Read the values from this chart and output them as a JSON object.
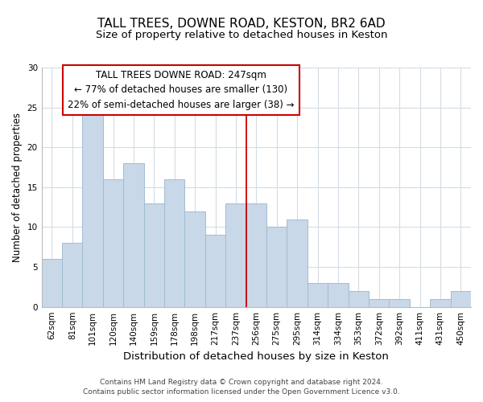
{
  "title": "TALL TREES, DOWNE ROAD, KESTON, BR2 6AD",
  "subtitle": "Size of property relative to detached houses in Keston",
  "xlabel": "Distribution of detached houses by size in Keston",
  "ylabel": "Number of detached properties",
  "categories": [
    "62sqm",
    "81sqm",
    "101sqm",
    "120sqm",
    "140sqm",
    "159sqm",
    "178sqm",
    "198sqm",
    "217sqm",
    "237sqm",
    "256sqm",
    "275sqm",
    "295sqm",
    "314sqm",
    "334sqm",
    "353sqm",
    "372sqm",
    "392sqm",
    "411sqm",
    "431sqm",
    "450sqm"
  ],
  "values": [
    6,
    8,
    25,
    16,
    18,
    13,
    16,
    12,
    9,
    13,
    13,
    10,
    11,
    3,
    3,
    2,
    1,
    1,
    0,
    1,
    2
  ],
  "bar_color": "#c8d8e8",
  "bar_edgecolor": "#a0bcd0",
  "vline_x": 9.5,
  "vline_color": "#cc0000",
  "ylim": [
    0,
    30
  ],
  "yticks": [
    0,
    5,
    10,
    15,
    20,
    25,
    30
  ],
  "annotation_line1": "TALL TREES DOWNE ROAD: 247sqm",
  "annotation_line2": "← 77% of detached houses are smaller (130)",
  "annotation_line3": "22% of semi-detached houses are larger (38) →",
  "footer_line1": "Contains HM Land Registry data © Crown copyright and database right 2024.",
  "footer_line2": "Contains public sector information licensed under the Open Government Licence v3.0.",
  "background_color": "#ffffff",
  "grid_color": "#d4dce4",
  "title_fontsize": 11,
  "subtitle_fontsize": 9.5,
  "xlabel_fontsize": 9.5,
  "ylabel_fontsize": 8.5,
  "tick_fontsize": 7.5,
  "annotation_fontsize": 8.5,
  "footer_fontsize": 6.5
}
